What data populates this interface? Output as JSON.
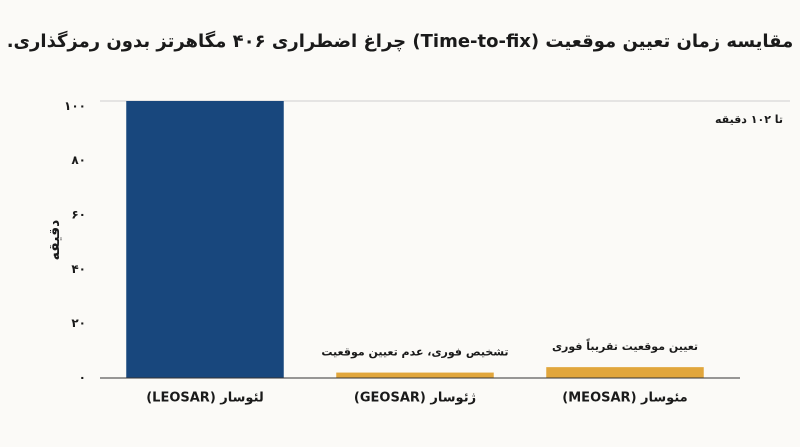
{
  "chart_data": {
    "type": "bar",
    "title": "مقایسه زمان تعیین موقعیت (Time-to-fix) چراغ اضطراری ۴۰۶ مگاهرتز بدون رمزگذاری.",
    "y_label": "دقیقه",
    "categories": [
      "لئوسار (LEOSAR)",
      "ژئوسار (GEOSAR)",
      "مئوسار (MEOSAR)"
    ],
    "values": [
      102,
      2,
      4
    ],
    "colors": [
      "#18477d",
      "#e1a63c",
      "#e1a63c"
    ],
    "ylim": [
      0,
      102
    ],
    "yticks": [
      {
        "value": 0,
        "label": "۰"
      },
      {
        "value": 20,
        "label": "۲۰"
      },
      {
        "value": 40,
        "label": "۴۰"
      },
      {
        "value": 60,
        "label": "۶۰"
      },
      {
        "value": 80,
        "label": "۸۰"
      },
      {
        "value": 100,
        "label": "۱۰۰"
      }
    ],
    "grid": false,
    "note": "تا ۱۰۲ دقیقه",
    "annotations": [
      {
        "text": "تشخیص فوری، عدم تعیین موقعیت",
        "category": "ژئوسار (GEOSAR)"
      },
      {
        "text": "تعیین موقعیت تقریباً فوری",
        "category": "مئوسار (MEOSAR)"
      }
    ]
  }
}
